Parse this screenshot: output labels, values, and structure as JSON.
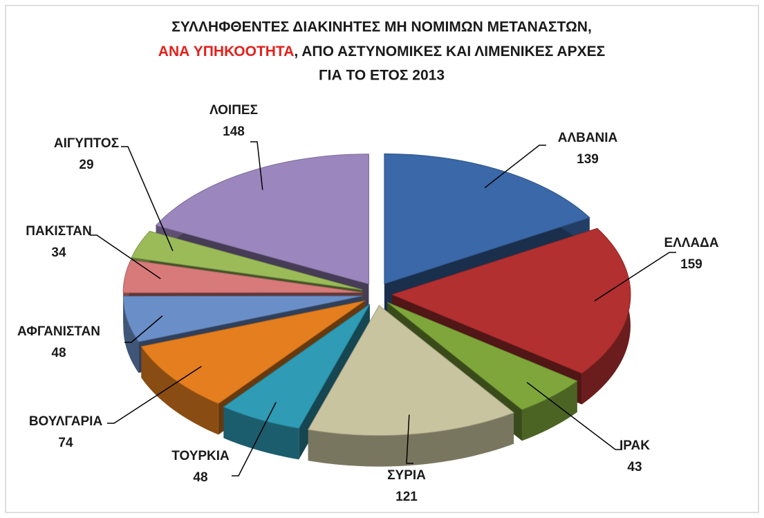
{
  "chart_data": {
    "type": "pie3d",
    "title": {
      "line1": "ΣΥΛΛΗΦΘΕΝΤΕΣ ΔΙΑΚΙΝΗΤΕΣ ΜΗ ΝΟΜΙΜΩΝ ΜΕΤΑΝΑΣΤΩΝ,",
      "line2_highlight": "ΑΝΑ ΥΠΗΚΟΟΤΗΤΑ",
      "line2_rest": ", ΑΠΟ ΑΣΤΥΝΟΜΙΚΕΣ ΚΑΙ ΛΙΜΕΝΙΚΕΣ ΑΡΧΕΣ",
      "line3": "ΓΙΑ ΤΟ ΕΤΟΣ 2013",
      "highlight_color": "#e3201b"
    },
    "categories": [
      "ΑΛΒΑΝΙΑ",
      "ΕΛΛΑΔΑ",
      "ΙΡΑΚ",
      "ΣΥΡΙΑ",
      "ΤΟΥΡΚΙΑ",
      "ΒΟΥΛΓΑΡΙΑ",
      "ΑΦΓΑΝΙΣΤΑΝ",
      "ΠΑΚΙΣΤΑΝ",
      "ΑΙΓΥΠΤΟΣ",
      "ΛΟΙΠΕΣ"
    ],
    "values": [
      139,
      159,
      43,
      121,
      48,
      74,
      48,
      34,
      29,
      148
    ],
    "colors": [
      "#3a68a8",
      "#b33030",
      "#7fa63a",
      "#c9c4a0",
      "#2f9bb5",
      "#e57e1e",
      "#6a8fc8",
      "#d87a7a",
      "#9bbb59",
      "#9b86bd"
    ]
  }
}
